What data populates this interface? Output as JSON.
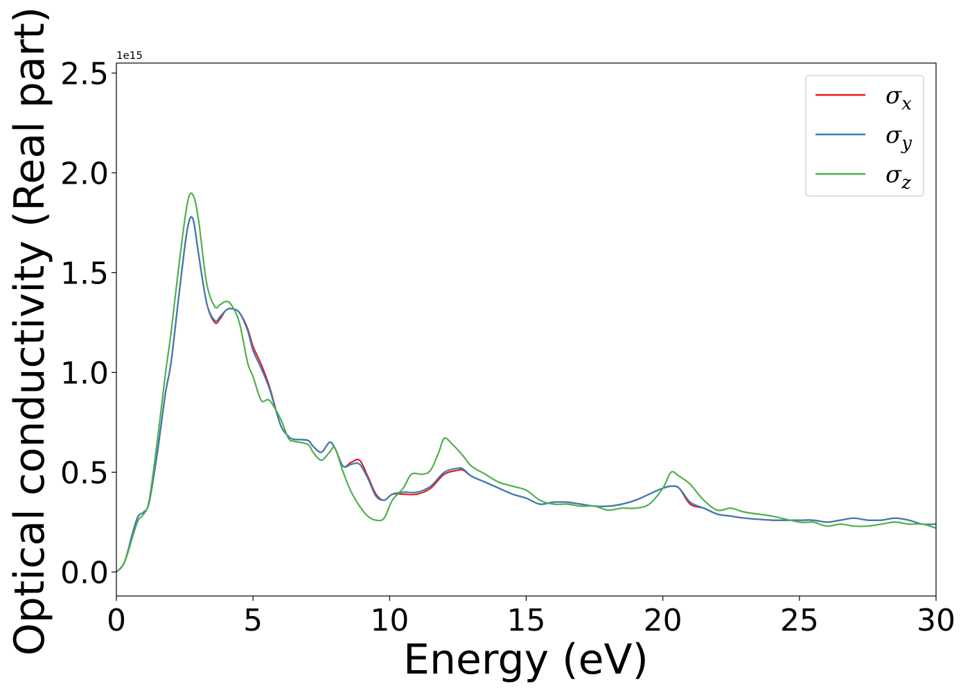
{
  "chart_data": {
    "type": "line",
    "title": "",
    "xlabel": "Energy (eV)",
    "ylabel": "Optical conductivity (Real part)",
    "y_offset_label": "1e15",
    "xlim": [
      0,
      30
    ],
    "ylim": [
      -0.12,
      2.55
    ],
    "xticks": [
      {
        "value": 0,
        "label": "0"
      },
      {
        "value": 5,
        "label": "5"
      },
      {
        "value": 10,
        "label": "10"
      },
      {
        "value": 15,
        "label": "15"
      },
      {
        "value": 20,
        "label": "20"
      },
      {
        "value": 25,
        "label": "25"
      },
      {
        "value": 30,
        "label": "30"
      }
    ],
    "yticks": [
      {
        "value": 0.0,
        "label": "0.0"
      },
      {
        "value": 0.5,
        "label": "0.5"
      },
      {
        "value": 1.0,
        "label": "1.0"
      },
      {
        "value": 1.5,
        "label": "1.5"
      },
      {
        "value": 2.0,
        "label": "2.0"
      },
      {
        "value": 2.5,
        "label": "2.5"
      }
    ],
    "grid": false,
    "legend_position": "top-right",
    "series": [
      {
        "name": "σx",
        "symbol": "σ",
        "subscript": "x",
        "color": "#e41a1c",
        "x": [
          0,
          0.3,
          0.6,
          0.8,
          1.0,
          1.2,
          1.5,
          1.8,
          2.0,
          2.3,
          2.6,
          2.8,
          3.0,
          3.3,
          3.6,
          3.8,
          4.0,
          4.2,
          4.5,
          4.8,
          5.0,
          5.3,
          5.6,
          6.0,
          6.3,
          6.5,
          7.0,
          7.2,
          7.5,
          7.8,
          8.0,
          8.3,
          8.6,
          8.9,
          9.2,
          9.5,
          9.8,
          10.1,
          10.5,
          11.0,
          11.5,
          12.0,
          12.5,
          12.7,
          13.0,
          13.5,
          14.0,
          14.5,
          15.0,
          15.5,
          16.0,
          16.5,
          17.0,
          17.5,
          18.0,
          18.5,
          19.0,
          19.5,
          20.0,
          20.3,
          20.6,
          21.0,
          21.5,
          22.0,
          22.5,
          23.0,
          24.0,
          25.0,
          25.5,
          26.0,
          26.5,
          27.0,
          27.5,
          28.0,
          28.5,
          29.0,
          29.5,
          30.0
        ],
        "y": [
          0.0,
          0.05,
          0.2,
          0.28,
          0.3,
          0.35,
          0.6,
          0.9,
          1.05,
          1.4,
          1.72,
          1.77,
          1.6,
          1.35,
          1.25,
          1.27,
          1.31,
          1.32,
          1.3,
          1.22,
          1.13,
          1.04,
          0.93,
          0.74,
          0.68,
          0.665,
          0.66,
          0.63,
          0.6,
          0.65,
          0.62,
          0.53,
          0.55,
          0.56,
          0.48,
          0.39,
          0.36,
          0.39,
          0.39,
          0.39,
          0.42,
          0.49,
          0.51,
          0.51,
          0.48,
          0.45,
          0.42,
          0.39,
          0.37,
          0.34,
          0.35,
          0.35,
          0.34,
          0.33,
          0.33,
          0.34,
          0.36,
          0.39,
          0.42,
          0.43,
          0.42,
          0.34,
          0.32,
          0.29,
          0.28,
          0.27,
          0.26,
          0.26,
          0.26,
          0.25,
          0.26,
          0.27,
          0.26,
          0.26,
          0.27,
          0.26,
          0.24,
          0.24
        ]
      },
      {
        "name": "σy",
        "symbol": "σ",
        "subscript": "y",
        "color": "#377eb8",
        "x": [
          0,
          0.3,
          0.6,
          0.8,
          1.0,
          1.2,
          1.5,
          1.8,
          2.0,
          2.3,
          2.6,
          2.8,
          3.0,
          3.3,
          3.6,
          3.8,
          4.0,
          4.2,
          4.5,
          4.8,
          5.0,
          5.3,
          5.6,
          6.0,
          6.3,
          6.5,
          7.0,
          7.2,
          7.5,
          7.8,
          8.0,
          8.3,
          8.6,
          8.9,
          9.2,
          9.5,
          9.8,
          10.1,
          10.5,
          11.0,
          11.5,
          12.0,
          12.5,
          12.7,
          13.0,
          13.5,
          14.0,
          14.5,
          15.0,
          15.5,
          16.0,
          16.5,
          17.0,
          17.5,
          18.0,
          18.5,
          19.0,
          19.5,
          20.0,
          20.3,
          20.6,
          21.0,
          21.5,
          22.0,
          22.5,
          23.0,
          24.0,
          25.0,
          25.5,
          26.0,
          26.5,
          27.0,
          27.5,
          28.0,
          28.5,
          29.0,
          29.5,
          30.0
        ],
        "y": [
          0.0,
          0.05,
          0.2,
          0.28,
          0.3,
          0.35,
          0.6,
          0.9,
          1.05,
          1.4,
          1.72,
          1.77,
          1.6,
          1.35,
          1.26,
          1.28,
          1.31,
          1.32,
          1.3,
          1.21,
          1.11,
          1.02,
          0.92,
          0.74,
          0.68,
          0.665,
          0.66,
          0.63,
          0.6,
          0.65,
          0.62,
          0.53,
          0.54,
          0.54,
          0.47,
          0.38,
          0.36,
          0.39,
          0.4,
          0.4,
          0.43,
          0.5,
          0.52,
          0.515,
          0.48,
          0.45,
          0.42,
          0.39,
          0.37,
          0.34,
          0.35,
          0.35,
          0.34,
          0.33,
          0.33,
          0.34,
          0.36,
          0.39,
          0.42,
          0.43,
          0.42,
          0.35,
          0.32,
          0.29,
          0.28,
          0.27,
          0.26,
          0.26,
          0.26,
          0.25,
          0.26,
          0.27,
          0.26,
          0.26,
          0.27,
          0.26,
          0.24,
          0.24
        ]
      },
      {
        "name": "σz",
        "symbol": "σ",
        "subscript": "z",
        "color": "#4daf4a",
        "x": [
          0,
          0.3,
          0.6,
          0.8,
          1.0,
          1.2,
          1.5,
          1.8,
          2.0,
          2.3,
          2.6,
          2.8,
          3.0,
          3.3,
          3.6,
          3.8,
          4.0,
          4.2,
          4.5,
          4.8,
          5.0,
          5.3,
          5.6,
          6.0,
          6.3,
          6.5,
          7.0,
          7.2,
          7.5,
          7.8,
          8.0,
          8.3,
          8.6,
          8.9,
          9.2,
          9.5,
          9.8,
          10.1,
          10.5,
          10.8,
          11.2,
          11.5,
          11.8,
          12.0,
          12.3,
          12.7,
          13.0,
          13.5,
          14.0,
          14.5,
          15.0,
          15.5,
          16.0,
          16.5,
          17.0,
          17.5,
          18.0,
          18.5,
          19.0,
          19.5,
          20.0,
          20.3,
          20.6,
          21.0,
          21.5,
          22.0,
          22.5,
          23.0,
          24.0,
          25.0,
          25.5,
          26.0,
          26.5,
          27.0,
          27.5,
          28.0,
          28.5,
          29.0,
          29.5,
          30.0
        ],
        "y": [
          0.0,
          0.05,
          0.18,
          0.26,
          0.29,
          0.36,
          0.66,
          1.0,
          1.2,
          1.55,
          1.85,
          1.89,
          1.77,
          1.45,
          1.33,
          1.34,
          1.355,
          1.34,
          1.25,
          1.05,
          0.98,
          0.86,
          0.86,
          0.77,
          0.67,
          0.655,
          0.64,
          0.6,
          0.56,
          0.6,
          0.62,
          0.5,
          0.4,
          0.33,
          0.28,
          0.26,
          0.27,
          0.36,
          0.42,
          0.49,
          0.49,
          0.51,
          0.6,
          0.67,
          0.64,
          0.58,
          0.53,
          0.49,
          0.45,
          0.43,
          0.41,
          0.36,
          0.34,
          0.34,
          0.33,
          0.33,
          0.31,
          0.32,
          0.32,
          0.34,
          0.42,
          0.5,
          0.48,
          0.44,
          0.36,
          0.31,
          0.32,
          0.3,
          0.28,
          0.25,
          0.25,
          0.23,
          0.24,
          0.23,
          0.23,
          0.24,
          0.25,
          0.24,
          0.24,
          0.22
        ]
      }
    ]
  }
}
